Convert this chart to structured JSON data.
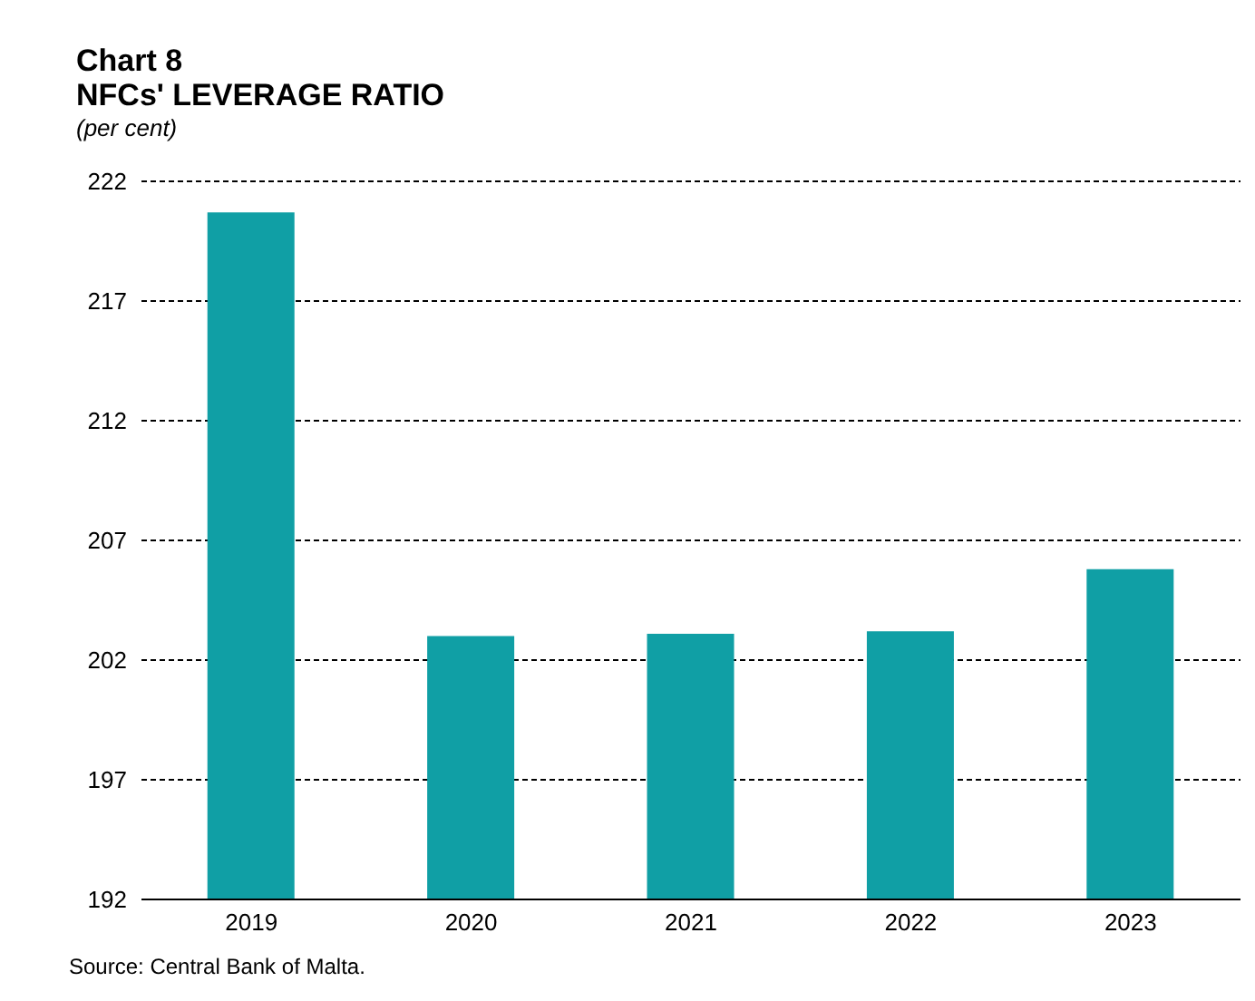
{
  "chart_data": {
    "type": "bar",
    "title": "Chart 8\nNFCs' LEVERAGE RATIO",
    "subtitle": "(per cent)",
    "categories": [
      "2019",
      "2020",
      "2021",
      "2022",
      "2023"
    ],
    "values": [
      220.7,
      203.0,
      203.1,
      203.2,
      205.8
    ],
    "color": "#109fa5",
    "ylim": [
      192,
      222
    ],
    "yticks": [
      192,
      197,
      202,
      207,
      212,
      217,
      222
    ],
    "grid": "y",
    "annotations": [
      "Source: Central Bank of Malta."
    ]
  }
}
